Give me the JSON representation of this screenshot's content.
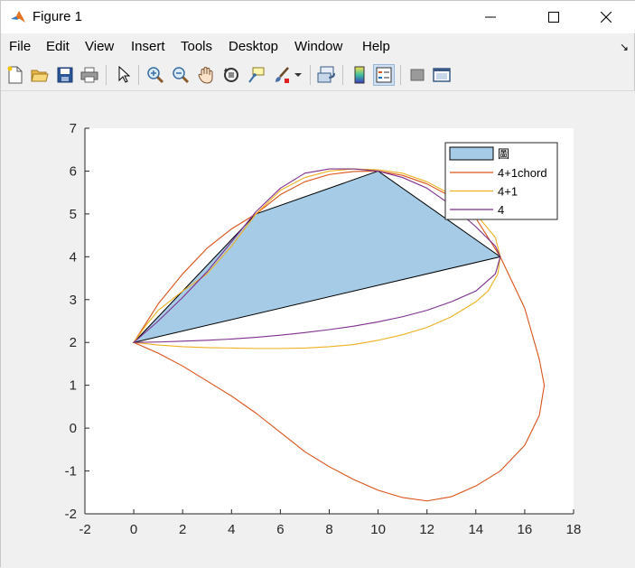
{
  "window": {
    "title": "Figure 1"
  },
  "menu": {
    "items": [
      "File",
      "Edit",
      "View",
      "Insert",
      "Tools",
      "Desktop",
      "Window",
      "Help"
    ]
  },
  "toolbar": {
    "buttons": [
      {
        "name": "new-figure",
        "icon": "new-file-icon"
      },
      {
        "name": "open-file",
        "icon": "folder-open-icon"
      },
      {
        "name": "save-figure",
        "icon": "save-icon"
      },
      {
        "name": "print-figure",
        "icon": "print-icon"
      },
      {
        "name": "edit-plot",
        "icon": "pointer-arrow-icon"
      },
      {
        "name": "zoom-in",
        "icon": "zoom-in-icon"
      },
      {
        "name": "zoom-out",
        "icon": "zoom-out-icon"
      },
      {
        "name": "pan",
        "icon": "hand-pan-icon"
      },
      {
        "name": "rotate-3d",
        "icon": "rotate-3d-icon"
      },
      {
        "name": "data-cursor",
        "icon": "data-cursor-icon"
      },
      {
        "name": "brush",
        "icon": "brush-icon"
      },
      {
        "name": "link-plot",
        "icon": "link-plot-icon"
      },
      {
        "name": "insert-colorbar",
        "icon": "colorbar-icon"
      },
      {
        "name": "insert-legend",
        "icon": "legend-icon"
      },
      {
        "name": "hide-plot-tools",
        "icon": "hide-tools-icon"
      },
      {
        "name": "show-plot-tools",
        "icon": "show-tools-icon"
      }
    ]
  },
  "colors": {
    "polygon_fill": "#a6cbe6",
    "chord": "#d95319",
    "plus1": "#edb120",
    "four": "#7e2f8e",
    "axes_bg": "#ffffff",
    "figure_bg": "#f0f0f0"
  },
  "chart_data": {
    "type": "line",
    "title": "",
    "xlabel": "",
    "ylabel": "",
    "xlim": [
      -2,
      18
    ],
    "ylim": [
      -2,
      7
    ],
    "xticks": [
      -2,
      0,
      2,
      4,
      6,
      8,
      10,
      12,
      14,
      16,
      18
    ],
    "yticks": [
      -2,
      -1,
      0,
      1,
      2,
      3,
      4,
      5,
      6,
      7
    ],
    "grid": false,
    "legend_location": "top-right",
    "polygon": {
      "name": "圖",
      "vertices": [
        [
          0,
          2
        ],
        [
          5,
          5
        ],
        [
          10,
          6
        ],
        [
          15,
          4
        ],
        [
          0,
          2
        ]
      ]
    },
    "series": [
      {
        "name": "4+1chord",
        "color": "#d95319",
        "x": [
          0,
          1,
          2,
          3,
          4,
          5,
          6,
          7,
          8,
          9,
          10,
          11,
          12,
          13,
          14,
          15,
          16,
          16.6,
          16.8,
          16.6,
          16,
          15,
          14,
          13,
          12,
          11,
          10,
          9,
          8,
          7,
          6,
          5,
          4,
          3,
          2,
          1,
          0
        ],
        "y": [
          2,
          2.9,
          3.6,
          4.2,
          4.65,
          5,
          5.45,
          5.75,
          5.92,
          5.99,
          6,
          5.9,
          5.7,
          5.4,
          4.9,
          4,
          2.8,
          1.6,
          1,
          0.3,
          -0.4,
          -1,
          -1.35,
          -1.6,
          -1.7,
          -1.62,
          -1.45,
          -1.2,
          -0.9,
          -0.55,
          -0.1,
          0.35,
          0.75,
          1.1,
          1.45,
          1.75,
          2
        ]
      },
      {
        "name": "4+1",
        "color": "#edb120",
        "x": [
          0,
          0.5,
          1,
          2,
          3,
          4,
          5,
          6,
          7,
          8,
          9,
          10,
          11,
          12,
          13,
          14,
          14.8,
          15,
          14.9,
          14.5,
          14,
          13,
          12,
          11,
          10,
          9,
          8,
          7,
          6,
          5,
          4,
          3,
          2,
          1,
          0
        ],
        "y": [
          2,
          2.4,
          2.75,
          3.2,
          3.6,
          4.25,
          5,
          5.55,
          5.85,
          6.0,
          6.05,
          6.03,
          5.95,
          5.75,
          5.45,
          5.0,
          4.45,
          4,
          3.6,
          3.2,
          2.95,
          2.6,
          2.35,
          2.18,
          2.05,
          1.95,
          1.9,
          1.87,
          1.86,
          1.86,
          1.87,
          1.88,
          1.9,
          1.94,
          2
        ]
      },
      {
        "name": "4",
        "color": "#7e2f8e",
        "x": [
          0,
          1,
          2,
          3,
          4,
          5,
          6,
          7,
          8,
          9,
          10,
          11,
          12,
          13,
          14,
          14.8,
          15,
          14.8,
          14,
          13,
          12,
          11,
          10,
          9,
          8,
          7,
          6,
          5,
          4,
          3,
          2,
          1,
          0
        ],
        "y": [
          2,
          2.5,
          3.05,
          3.65,
          4.35,
          5.05,
          5.6,
          5.95,
          6.05,
          6.05,
          6.0,
          5.85,
          5.6,
          5.2,
          4.7,
          4.25,
          4,
          3.6,
          3.2,
          2.95,
          2.75,
          2.6,
          2.48,
          2.38,
          2.3,
          2.23,
          2.17,
          2.12,
          2.08,
          2.05,
          2.03,
          2.01,
          2
        ]
      }
    ]
  }
}
